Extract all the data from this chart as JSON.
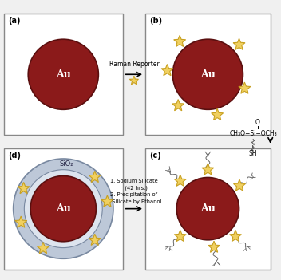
{
  "bg_color": "#f0f0f0",
  "panel_bg": "#ffffff",
  "au_color": "#8B1A1A",
  "au_label": "Au",
  "sio2_label": "SiO₂",
  "star_color": "#f0d060",
  "star_edge": "#c8a020",
  "panel_labels": [
    "(a)",
    "(b)",
    "(c)",
    "(d)"
  ],
  "arrow_ab_text": "Raman Reporter",
  "silane_text": "CH₃O−Si−OCH₃",
  "silane_top": "O",
  "silane_sh": "SH",
  "step_text": "1. Sodium Silicate\n   (42 hrs.)\n2. Precipitation of\n   Silicate by Ethanol"
}
